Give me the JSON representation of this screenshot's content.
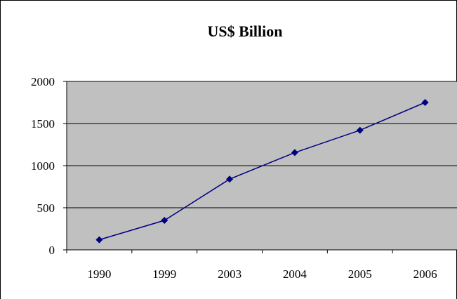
{
  "chart_data": {
    "type": "line",
    "title": "US$ Billion",
    "xlabel": "",
    "ylabel": "",
    "categories": [
      "1990",
      "1999",
      "2003",
      "2004",
      "2005",
      "2006"
    ],
    "series": [
      {
        "values": [
          120,
          350,
          840,
          1155,
          1420,
          1750
        ]
      }
    ],
    "ylim": [
      0,
      2000
    ],
    "yticks": [
      0,
      500,
      1000,
      1500,
      2000
    ],
    "grid": true,
    "legend": "none",
    "colors": {
      "plot_background": "#c0c0c0",
      "line": "#000080",
      "marker": "#000080",
      "gridline": "#000000"
    },
    "marker": "diamond-icon"
  }
}
